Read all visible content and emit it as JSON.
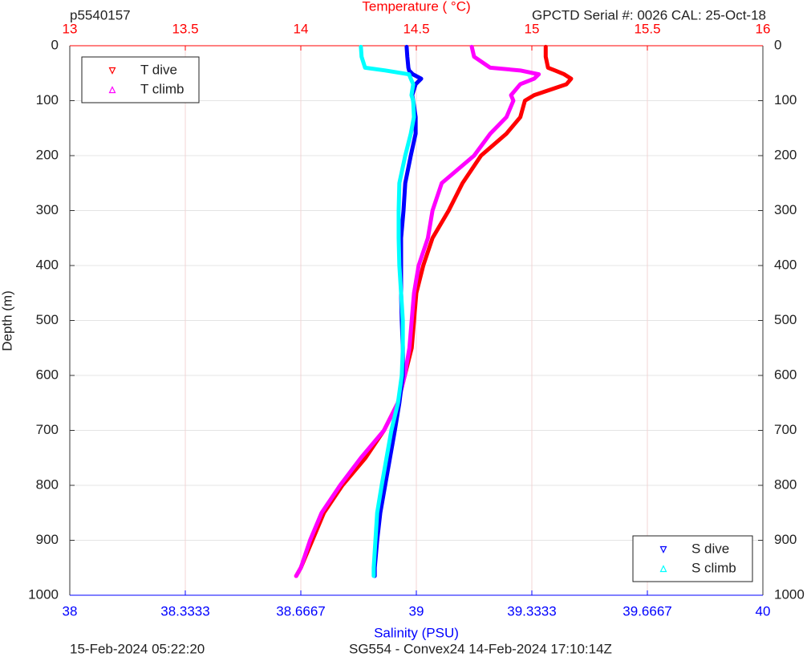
{
  "chart_data": {
    "type": "line",
    "top_left_text": "p5540157",
    "top_right_text": "GPCTD Serial #: 0026 CAL: 25-Oct-18",
    "x_top_label": "Temperature (    °C)",
    "x_bottom_label": "Salinity (PSU)",
    "ylabel": "Depth (m)",
    "footer_left": "15-Feb-2024 05:22:20",
    "footer_right": "SG554 - Convex24 14-Feb-2024 17:10:14Z",
    "xlim_top": [
      13,
      16
    ],
    "xticks_top": [
      13,
      13.5,
      14,
      14.5,
      15,
      15.5,
      16
    ],
    "xlim": [
      38,
      40
    ],
    "xticks": [
      38,
      38.3333,
      38.6667,
      39,
      39.3333,
      39.6667,
      40
    ],
    "ylim": [
      0,
      1000
    ],
    "y_reversed": true,
    "yticks": [
      0,
      100,
      200,
      300,
      400,
      500,
      600,
      700,
      800,
      900,
      1000
    ],
    "grid": true,
    "y": [
      2,
      20,
      40,
      45,
      52,
      60,
      70,
      90,
      100,
      130,
      160,
      200,
      250,
      300,
      350,
      400,
      450,
      500,
      550,
      600,
      650,
      700,
      750,
      800,
      850,
      900,
      950,
      965
    ],
    "series": [
      {
        "name": "T dive",
        "color": "#ff0000",
        "axis": "top",
        "marker": "down",
        "legend": "upper left",
        "values": [
          15.06,
          15.06,
          15.07,
          15.1,
          15.14,
          15.17,
          15.15,
          15.01,
          14.97,
          14.95,
          14.89,
          14.78,
          14.7,
          14.64,
          14.57,
          14.53,
          14.5,
          14.49,
          14.48,
          14.45,
          14.42,
          14.36,
          14.28,
          14.18,
          14.1,
          14.05,
          14.0,
          13.98
        ]
      },
      {
        "name": "T climb",
        "color": "#ff00ff",
        "axis": "top",
        "marker": "up",
        "legend": "upper left",
        "values": [
          14.74,
          14.75,
          14.82,
          14.95,
          15.03,
          15.01,
          14.95,
          14.91,
          14.92,
          14.89,
          14.82,
          14.75,
          14.61,
          14.57,
          14.55,
          14.51,
          14.49,
          14.48,
          14.47,
          14.45,
          14.42,
          14.36,
          14.26,
          14.17,
          14.09,
          14.04,
          14.0,
          13.98
        ]
      },
      {
        "name": "S dive",
        "color": "#0000ff",
        "axis": "bottom",
        "marker": "down",
        "legend": "lower right",
        "values": [
          38.972,
          38.974,
          38.977,
          38.979,
          38.99,
          39.014,
          38.998,
          38.988,
          38.991,
          38.998,
          38.998,
          38.984,
          38.968,
          38.963,
          38.956,
          38.956,
          38.956,
          38.958,
          38.961,
          38.961,
          38.951,
          38.938,
          38.924,
          38.91,
          38.896,
          38.887,
          38.88,
          38.88
        ]
      },
      {
        "name": "S climb",
        "color": "#00ffff",
        "axis": "bottom",
        "marker": "up",
        "legend": "lower right",
        "values": [
          38.84,
          38.842,
          38.852,
          38.91,
          38.979,
          38.984,
          38.991,
          38.986,
          38.991,
          38.993,
          38.984,
          38.968,
          38.951,
          38.949,
          38.949,
          38.951,
          38.956,
          38.961,
          38.961,
          38.958,
          38.947,
          38.928,
          38.914,
          38.9,
          38.887,
          38.882,
          38.877,
          38.877
        ]
      }
    ]
  }
}
